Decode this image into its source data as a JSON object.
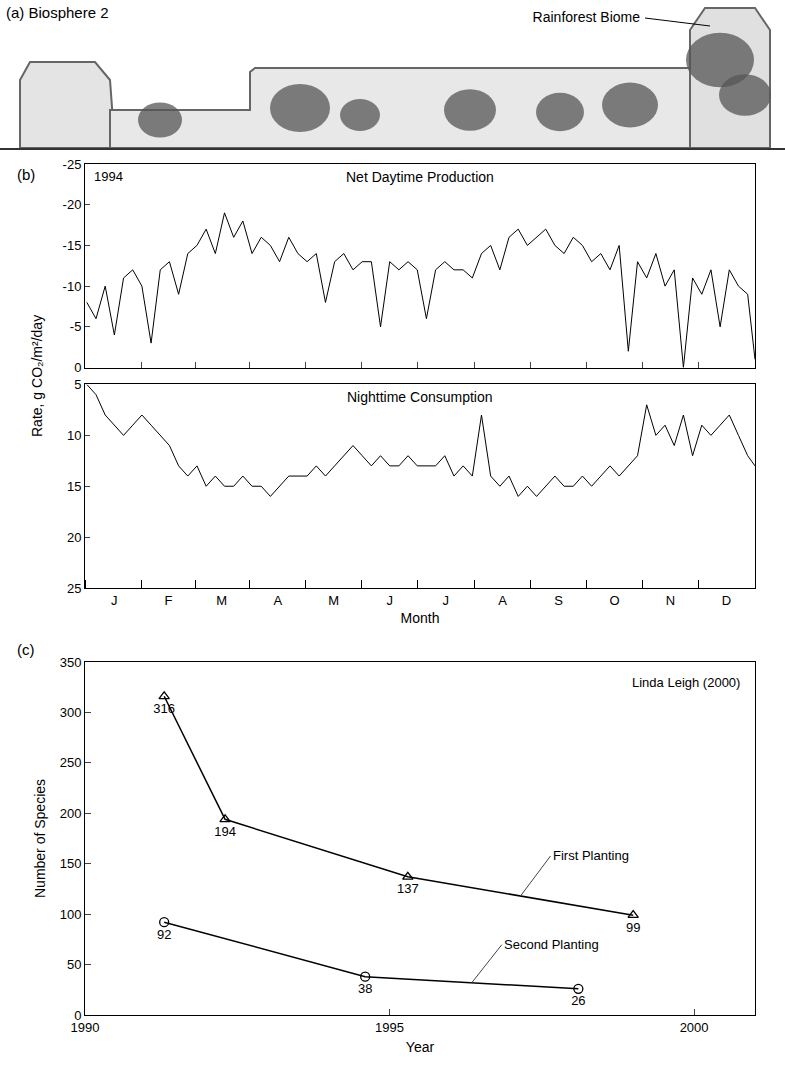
{
  "panel_a": {
    "label": "(a) Biosphere 2",
    "annotation": "Rainforest Biome"
  },
  "chart_data": [
    {
      "panel": "(b)",
      "type": "line",
      "annotations": [
        "1994"
      ],
      "xlabel": "Month",
      "ylabel": "Rate, g CO₂/m²/day",
      "x": [
        1,
        6,
        11,
        16,
        21,
        26,
        31,
        36,
        41,
        46,
        51,
        56,
        61,
        66,
        71,
        76,
        81,
        86,
        91,
        96,
        101,
        106,
        111,
        116,
        121,
        126,
        131,
        136,
        141,
        146,
        151,
        156,
        161,
        166,
        171,
        176,
        181,
        186,
        191,
        196,
        201,
        206,
        211,
        216,
        221,
        226,
        231,
        236,
        241,
        246,
        251,
        256,
        261,
        266,
        271,
        276,
        281,
        286,
        291,
        296,
        301,
        306,
        311,
        316,
        321,
        326,
        331,
        336,
        341,
        346,
        351,
        356,
        361,
        365
      ],
      "xlim": [
        0,
        365
      ],
      "xticks": [
        {
          "value": 16,
          "label": "J"
        },
        {
          "value": 45.5,
          "label": "F"
        },
        {
          "value": 74.5,
          "label": "M"
        },
        {
          "value": 105,
          "label": "A"
        },
        {
          "value": 135.5,
          "label": "M"
        },
        {
          "value": 166,
          "label": "J"
        },
        {
          "value": 196.5,
          "label": "J"
        },
        {
          "value": 227.5,
          "label": "A"
        },
        {
          "value": 258,
          "label": "S"
        },
        {
          "value": 288.5,
          "label": "O"
        },
        {
          "value": 319,
          "label": "N"
        },
        {
          "value": 349.5,
          "label": "D"
        }
      ],
      "ylim": [
        0,
        -25
      ],
      "yticks": [
        -25,
        -20,
        -15,
        -10,
        -5,
        0
      ],
      "y2lim": [
        25,
        5
      ],
      "y2ticks": [
        5,
        10,
        15,
        20,
        25
      ],
      "series": [
        {
          "name": "Net Daytime Production",
          "color": "#000000",
          "values": [
            -8,
            -6,
            -10,
            -4,
            -11,
            -12,
            -10,
            -3,
            -12,
            -13,
            -9,
            -14,
            -15,
            -17,
            -14,
            -19,
            -16,
            -18,
            -14,
            -16,
            -15,
            -13,
            -16,
            -14,
            -13,
            -14,
            -8,
            -13,
            -14,
            -12,
            -13,
            -13,
            -5,
            -13,
            -12,
            -13,
            -12,
            -6,
            -12,
            -13,
            -12,
            -12,
            -11,
            -14,
            -15,
            -12,
            -16,
            -17,
            -15,
            -16,
            -17,
            -15,
            -14,
            -16,
            -15,
            -13,
            -14,
            -12,
            -15,
            -2,
            -13,
            -11,
            -14,
            -10,
            -12,
            0,
            -11,
            -9,
            -12,
            -5,
            -12,
            -10,
            -9,
            -1
          ]
        },
        {
          "name": "Nighttime Consumption",
          "color": "#000000",
          "axis": "y2",
          "values": [
            5,
            6,
            8,
            9,
            10,
            9,
            8,
            9,
            10,
            11,
            13,
            14,
            13,
            15,
            14,
            15,
            15,
            14,
            15,
            15,
            16,
            15,
            14,
            14,
            14,
            13,
            14,
            13,
            12,
            11,
            12,
            13,
            12,
            13,
            13,
            12,
            13,
            13,
            13,
            12,
            14,
            13,
            14,
            8,
            14,
            15,
            14,
            16,
            15,
            16,
            15,
            14,
            15,
            15,
            14,
            15,
            14,
            13,
            14,
            13,
            12,
            7,
            10,
            9,
            11,
            8,
            12,
            9,
            10,
            9,
            8,
            10,
            12,
            13
          ]
        }
      ]
    },
    {
      "panel": "(c)",
      "type": "line",
      "annotations": [
        "Linda Leigh (2000)"
      ],
      "xlabel": "Year",
      "ylabel": "Number of Species",
      "xlim": [
        1990,
        2001
      ],
      "xticks": [
        1990,
        1995,
        2000
      ],
      "ylim": [
        0,
        350
      ],
      "yticks": [
        0,
        50,
        100,
        150,
        200,
        250,
        300,
        350
      ],
      "data_labels": true,
      "series": [
        {
          "name": "First Planting",
          "color": "#000000",
          "marker": "triangle",
          "x": [
            1991.3,
            1992.3,
            1995.3,
            1999
          ],
          "values": [
            316,
            194,
            137,
            99
          ]
        },
        {
          "name": "Second Planting",
          "color": "#000000",
          "marker": "circle",
          "x": [
            1991.3,
            1994.6,
            1998.1
          ],
          "values": [
            92,
            38,
            26
          ]
        }
      ]
    }
  ]
}
